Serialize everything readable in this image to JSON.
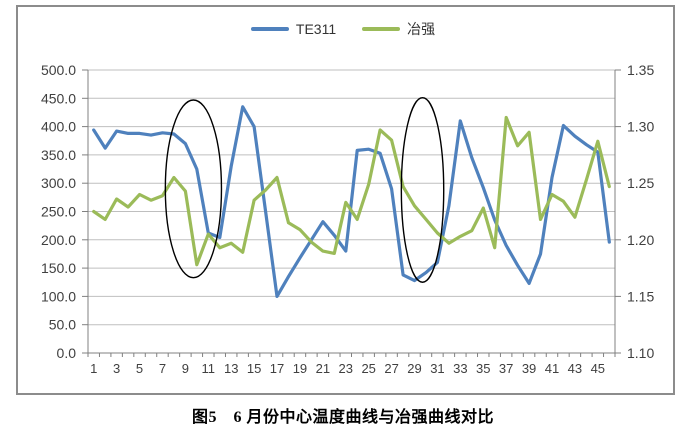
{
  "figure": {
    "caption": "图5　6 月份中心温度曲线与冶强曲线对比"
  },
  "legend": {
    "entries": [
      "TE311",
      "冶强"
    ]
  },
  "colors": {
    "series_blue": "#4F81BD",
    "series_green": "#9BBB59",
    "gridline": "#BFBFBF",
    "axis_line": "#808080",
    "label_text": "#404040",
    "annotation": "#000000",
    "frame_border": "#8c8c8c"
  },
  "chart_data": {
    "type": "line",
    "title": "",
    "xlabel": "",
    "ylabel_left": "",
    "ylabel_right": "",
    "grid": true,
    "legend_position": "top-center",
    "x": [
      1,
      2,
      3,
      4,
      5,
      6,
      7,
      8,
      9,
      10,
      11,
      12,
      13,
      14,
      15,
      16,
      17,
      18,
      19,
      20,
      21,
      22,
      23,
      24,
      25,
      26,
      27,
      28,
      29,
      30,
      31,
      32,
      33,
      34,
      35,
      36,
      37,
      38,
      39,
      40,
      41,
      42,
      43,
      44,
      45,
      46
    ],
    "x_tick_labels": [
      "1",
      "3",
      "5",
      "7",
      "9",
      "11",
      "13",
      "15",
      "17",
      "19",
      "21",
      "23",
      "25",
      "27",
      "29",
      "31",
      "33",
      "35",
      "37",
      "39",
      "41",
      "43",
      "45"
    ],
    "left_axis": {
      "min": 0,
      "max": 500,
      "step": 50,
      "tick_labels": [
        "500.0",
        "450.0",
        "400.0",
        "350.0",
        "300.0",
        "250.0",
        "200.0",
        "150.0",
        "100.0",
        "50.0",
        "0.0"
      ]
    },
    "right_axis": {
      "min": 1.1,
      "max": 1.35,
      "step": 0.05,
      "tick_labels": [
        "1.35",
        "1.30",
        "1.25",
        "1.20",
        "1.15",
        "1.10"
      ]
    },
    "series": [
      {
        "name": "TE311",
        "axis": "left",
        "color": "#4F81BD",
        "values": [
          394,
          362,
          392,
          388,
          388,
          385,
          389,
          387,
          370,
          325,
          212,
          204,
          330,
          435,
          400,
          250,
          100,
          135,
          168,
          200,
          232,
          208,
          180,
          358,
          360,
          353,
          290,
          138,
          128,
          142,
          160,
          260,
          410,
          345,
          292,
          235,
          190,
          155,
          123,
          175,
          310,
          402,
          383,
          368,
          355,
          196
        ]
      },
      {
        "name": "冶强",
        "axis": "right",
        "color": "#9BBB59",
        "values": [
          1.225,
          1.218,
          1.236,
          1.229,
          1.24,
          1.235,
          1.239,
          1.255,
          1.243,
          1.178,
          1.205,
          1.193,
          1.197,
          1.189,
          1.235,
          1.244,
          1.255,
          1.215,
          1.209,
          1.198,
          1.19,
          1.188,
          1.233,
          1.218,
          1.249,
          1.297,
          1.288,
          1.247,
          1.23,
          1.218,
          1.206,
          1.197,
          1.203,
          1.208,
          1.228,
          1.193,
          1.308,
          1.283,
          1.295,
          1.218,
          1.24,
          1.234,
          1.22,
          1.253,
          1.287,
          1.247
        ]
      }
    ],
    "annotations": [
      {
        "type": "ellipse",
        "cx_category": 9.7,
        "cy_left_value": 290,
        "rx_categories": 2.45,
        "ry_left_values": 157
      },
      {
        "type": "ellipse",
        "cx_category": 29.7,
        "cy_left_value": 288,
        "rx_categories": 1.85,
        "ry_left_values": 163
      }
    ]
  }
}
